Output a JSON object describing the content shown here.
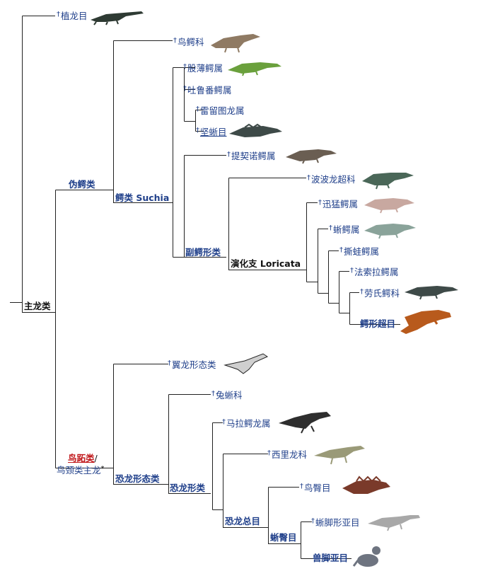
{
  "colors": {
    "link": "#1f3f8a",
    "line": "#222222",
    "red": "#c0171a"
  },
  "labels": {
    "phytosauria": "植龙目",
    "ornithosuchidae": "鸟鳄科",
    "gracilisuchus": "股薄鳄属",
    "turfanosuchus": "吐鲁番鳄属",
    "revueltosaurus": "雷留图龙属",
    "aetosauria": "坚蜥目",
    "ticinosuchus": "提契诺鳄属",
    "poposauroidea": "波波龙超科",
    "prestosuchus": "迅猛鳄属",
    "saurosuchus": "蜥鳄属",
    "rauisuchus": "撕蛙鳄属",
    "fasolasuchus": "法索拉鳄属",
    "rauisuchidae": "劳氏鳄科",
    "crocodylomorpha": "鳄形超目",
    "pseudosuchia": "伪鳄类",
    "suchia": "鳄类 Suchia",
    "paracrocodylomorpha": "副鳄形类",
    "loricata": "演化支 Loricata",
    "archosauria": "主龙类",
    "pterosauromorpha": "翼龙形态类",
    "lagerpetidae": "兔蜥科",
    "marasuchus": "马拉鳄龙属",
    "silesauridae": "西里龙科",
    "ornithischia": "鸟臀目",
    "sauropodomorpha": "蜥脚形亚目",
    "theropoda": "兽脚亚目",
    "dinosauria": "恐龙总目",
    "saurischia": "蜥臀目",
    "dinosauriformes": "恐龙形类",
    "dinosauromorpha": "恐龙形态类",
    "avemetatarsalia": "鸟跖类",
    "ornithodira": "鸟颈类主龙",
    "slash": "/",
    "asterisk": "*",
    "dagger": "†"
  }
}
